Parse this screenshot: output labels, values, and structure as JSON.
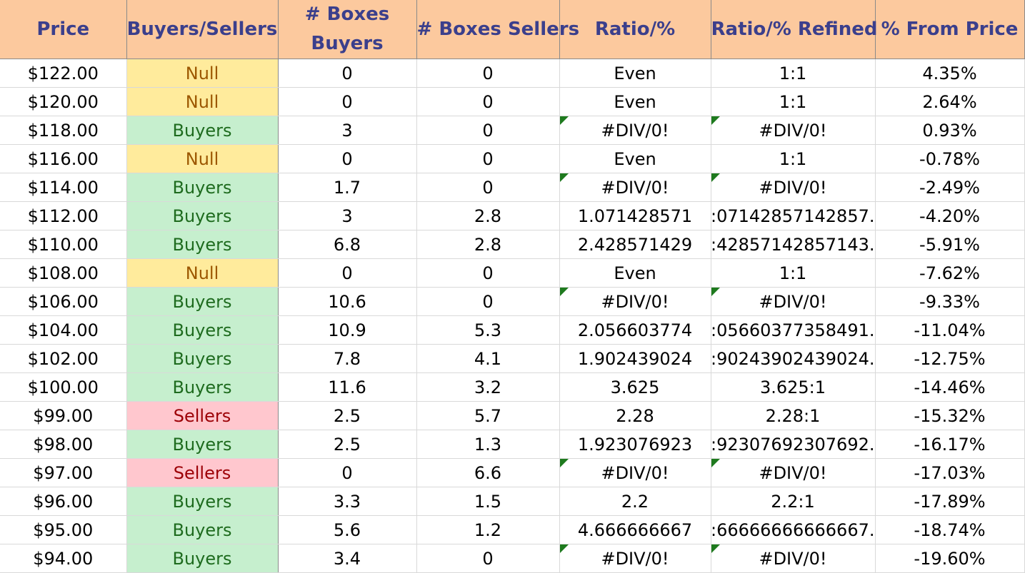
{
  "headers": [
    "Price",
    "Buyers/Sellers",
    "# Boxes Buyers",
    "# Boxes Sellers",
    "Ratio/%",
    "Ratio/% Refined",
    "% From Price"
  ],
  "rows": [
    {
      "price": "$122.00",
      "bs": "Null",
      "buyers": "0",
      "sellers": "0",
      "ratio": "Even",
      "refined": "1:1",
      "pct": "4.35%"
    },
    {
      "price": "$120.00",
      "bs": "Null",
      "buyers": "0",
      "sellers": "0",
      "ratio": "Even",
      "refined": "1:1",
      "pct": "2.64%"
    },
    {
      "price": "$118.00",
      "bs": "Buyers",
      "buyers": "3",
      "sellers": "0",
      "ratio": "#DIV/0!",
      "refined": "#DIV/0!",
      "pct": "0.93%"
    },
    {
      "price": "$116.00",
      "bs": "Null",
      "buyers": "0",
      "sellers": "0",
      "ratio": "Even",
      "refined": "1:1",
      "pct": "-0.78%"
    },
    {
      "price": "$114.00",
      "bs": "Buyers",
      "buyers": "1.7",
      "sellers": "0",
      "ratio": "#DIV/0!",
      "refined": "#DIV/0!",
      "pct": "-2.49%"
    },
    {
      "price": "$112.00",
      "bs": "Buyers",
      "buyers": "3",
      "sellers": "2.8",
      "ratio": "1.071428571",
      "refined": ".07142857142857:",
      "pct": "-4.20%"
    },
    {
      "price": "$110.00",
      "bs": "Buyers",
      "buyers": "6.8",
      "sellers": "2.8",
      "ratio": "2.428571429",
      "refined": ".42857142857143:",
      "pct": "-5.91%"
    },
    {
      "price": "$108.00",
      "bs": "Null",
      "buyers": "0",
      "sellers": "0",
      "ratio": "Even",
      "refined": "1:1",
      "pct": "-7.62%"
    },
    {
      "price": "$106.00",
      "bs": "Buyers",
      "buyers": "10.6",
      "sellers": "0",
      "ratio": "#DIV/0!",
      "refined": "#DIV/0!",
      "pct": "-9.33%"
    },
    {
      "price": "$104.00",
      "bs": "Buyers",
      "buyers": "10.9",
      "sellers": "5.3",
      "ratio": "2.056603774",
      "refined": ".05660377358491:",
      "pct": "-11.04%"
    },
    {
      "price": "$102.00",
      "bs": "Buyers",
      "buyers": "7.8",
      "sellers": "4.1",
      "ratio": "1.902439024",
      "refined": ".90243902439024:",
      "pct": "-12.75%"
    },
    {
      "price": "$100.00",
      "bs": "Buyers",
      "buyers": "11.6",
      "sellers": "3.2",
      "ratio": "3.625",
      "refined": "3.625:1",
      "pct": "-14.46%"
    },
    {
      "price": "$99.00",
      "bs": "Sellers",
      "buyers": "2.5",
      "sellers": "5.7",
      "ratio": "2.28",
      "refined": "2.28:1",
      "pct": "-15.32%"
    },
    {
      "price": "$98.00",
      "bs": "Buyers",
      "buyers": "2.5",
      "sellers": "1.3",
      "ratio": "1.923076923",
      "refined": ".92307692307692:",
      "pct": "-16.17%"
    },
    {
      "price": "$97.00",
      "bs": "Sellers",
      "buyers": "0",
      "sellers": "6.6",
      "ratio": "#DIV/0!",
      "refined": "#DIV/0!",
      "pct": "-17.03%"
    },
    {
      "price": "$96.00",
      "bs": "Buyers",
      "buyers": "3.3",
      "sellers": "1.5",
      "ratio": "2.2",
      "refined": "2.2:1",
      "pct": "-17.89%"
    },
    {
      "price": "$95.00",
      "bs": "Buyers",
      "buyers": "5.6",
      "sellers": "1.2",
      "ratio": "4.666666667",
      "refined": ".66666666666667:",
      "pct": "-18.74%"
    },
    {
      "price": "$94.00",
      "bs": "Buyers",
      "buyers": "3.4",
      "sellers": "0",
      "ratio": "#DIV/0!",
      "refined": "#DIV/0!",
      "pct": "-19.60%"
    }
  ],
  "colors": {
    "header_bg": "#fcc99e",
    "header_text": "#3b3f8c",
    "buyers_bg": "#c6efce",
    "buyers_text": "#1e6b1e",
    "sellers_bg": "#ffc7ce",
    "sellers_text": "#9c0006",
    "null_bg": "#ffeb9c",
    "null_text": "#9c5700"
  }
}
